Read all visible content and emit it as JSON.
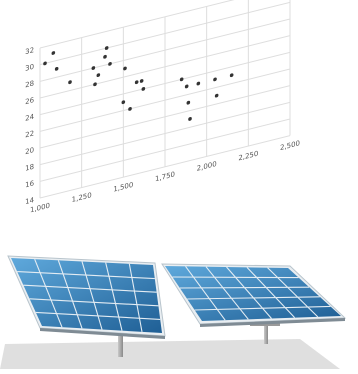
{
  "chart_data": {
    "type": "scatter",
    "title": "",
    "xlabel": "",
    "ylabel": "",
    "xlim": [
      1000,
      2500
    ],
    "ylim": [
      14,
      32
    ],
    "x_ticks": [
      "1,000",
      "1,250",
      "1,500",
      "1,750",
      "2,000",
      "2,250",
      "2,500"
    ],
    "y_ticks": [
      "14",
      "16",
      "18",
      "20",
      "22",
      "24",
      "26",
      "28",
      "30",
      "32"
    ],
    "grid": true,
    "series": [
      {
        "x": [
          1030,
          1080,
          1100,
          1180,
          1320,
          1330,
          1350,
          1390,
          1400,
          1420,
          1500,
          1510,
          1540,
          1580,
          1610,
          1620,
          1850,
          1880,
          1890,
          1900,
          1950,
          2050,
          2060,
          2150
        ],
        "y": [
          30,
          31,
          29,
          27,
          28,
          26,
          27,
          29,
          30,
          28,
          23,
          27,
          22,
          25,
          25,
          24,
          24,
          23,
          21,
          19,
          23,
          23,
          21,
          23
        ]
      }
    ],
    "colors": {
      "point": "#333333",
      "grid": "#dddddd",
      "tick_text": "#555555"
    }
  },
  "illustration": {
    "subject": "solar-panels",
    "colors": {
      "cell": "#2d7fbe",
      "frame": "#e9eef2",
      "stand": "#a7a7a7",
      "shadow": "#c4c4c4"
    }
  }
}
